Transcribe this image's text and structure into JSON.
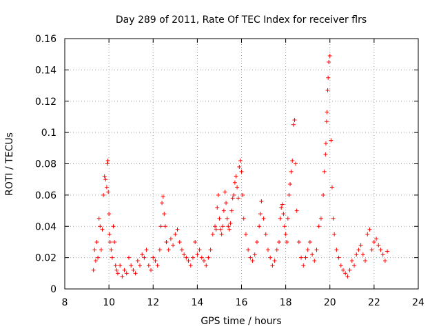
{
  "chart_data": {
    "type": "scatter",
    "title": "Day 289 of 2011, Rate Of TEC Index for receiver flrs",
    "xlabel": "GPS time / hours",
    "ylabel": "ROTI / TECUs",
    "xlim": [
      8,
      24
    ],
    "ylim": [
      0,
      0.16
    ],
    "xticks": [
      8,
      10,
      12,
      14,
      16,
      18,
      20,
      22,
      24
    ],
    "xtick_labels": [
      "8",
      "10",
      "12",
      "14",
      "16",
      "18",
      "20",
      "22",
      "24"
    ],
    "yticks": [
      0,
      0.02,
      0.04,
      0.06,
      0.08,
      0.1,
      0.12,
      0.14,
      0.16
    ],
    "ytick_labels": [
      "0",
      "0.02",
      "0.04",
      "0.06",
      "0.08",
      "0.1",
      "0.12",
      "0.14",
      "0.16"
    ],
    "grid": true,
    "marker": "plus",
    "color": "#ff0000",
    "series": [
      {
        "name": "ROTI",
        "x": [
          9.3,
          9.35,
          9.4,
          9.45,
          9.5,
          9.55,
          9.6,
          9.65,
          9.7,
          9.75,
          9.8,
          9.85,
          9.9,
          9.92,
          9.95,
          9.97,
          10.0,
          10.02,
          10.05,
          10.1,
          10.15,
          10.2,
          10.25,
          10.3,
          10.35,
          10.4,
          10.5,
          10.6,
          10.7,
          10.8,
          10.9,
          11.0,
          11.1,
          11.2,
          11.3,
          11.4,
          11.5,
          11.6,
          11.7,
          11.8,
          11.9,
          12.0,
          12.1,
          12.2,
          12.3,
          12.35,
          12.4,
          12.45,
          12.5,
          12.55,
          12.6,
          12.7,
          12.8,
          12.9,
          13.0,
          13.1,
          13.2,
          13.3,
          13.4,
          13.5,
          13.6,
          13.7,
          13.8,
          13.9,
          14.0,
          14.1,
          14.2,
          14.3,
          14.4,
          14.5,
          14.6,
          14.7,
          14.8,
          14.85,
          14.9,
          14.95,
          15.0,
          15.05,
          15.1,
          15.15,
          15.2,
          15.25,
          15.3,
          15.35,
          15.4,
          15.45,
          15.5,
          15.55,
          15.6,
          15.65,
          15.7,
          15.75,
          15.8,
          15.85,
          15.9,
          15.95,
          16.0,
          16.05,
          16.1,
          16.2,
          16.3,
          16.4,
          16.5,
          16.6,
          16.7,
          16.8,
          16.85,
          16.9,
          17.0,
          17.1,
          17.2,
          17.3,
          17.4,
          17.5,
          17.6,
          17.7,
          17.75,
          17.8,
          17.85,
          17.9,
          17.95,
          18.0,
          18.05,
          18.1,
          18.15,
          18.2,
          18.25,
          18.3,
          18.35,
          18.4,
          18.45,
          18.5,
          18.6,
          18.7,
          18.8,
          18.9,
          19.0,
          19.1,
          19.2,
          19.3,
          19.4,
          19.5,
          19.6,
          19.7,
          19.75,
          19.8,
          19.82,
          19.85,
          19.87,
          19.9,
          19.92,
          19.95,
          20.0,
          20.05,
          20.1,
          20.15,
          20.2,
          20.3,
          20.4,
          20.5,
          20.6,
          20.7,
          20.8,
          20.9,
          21.0,
          21.1,
          21.2,
          21.3,
          21.4,
          21.5,
          21.6,
          21.7,
          21.8,
          21.9,
          22.0,
          22.1,
          22.2,
          22.3,
          22.4,
          22.5,
          22.6
        ],
        "y": [
          0.012,
          0.025,
          0.018,
          0.03,
          0.02,
          0.045,
          0.04,
          0.025,
          0.038,
          0.06,
          0.072,
          0.07,
          0.065,
          0.08,
          0.082,
          0.062,
          0.048,
          0.035,
          0.03,
          0.025,
          0.02,
          0.04,
          0.03,
          0.015,
          0.012,
          0.01,
          0.015,
          0.008,
          0.012,
          0.01,
          0.02,
          0.015,
          0.012,
          0.01,
          0.018,
          0.015,
          0.022,
          0.02,
          0.025,
          0.015,
          0.012,
          0.02,
          0.018,
          0.015,
          0.025,
          0.04,
          0.055,
          0.059,
          0.048,
          0.04,
          0.03,
          0.025,
          0.032,
          0.028,
          0.035,
          0.038,
          0.03,
          0.025,
          0.022,
          0.02,
          0.018,
          0.015,
          0.02,
          0.03,
          0.022,
          0.025,
          0.02,
          0.018,
          0.015,
          0.02,
          0.025,
          0.035,
          0.04,
          0.038,
          0.052,
          0.06,
          0.045,
          0.038,
          0.035,
          0.04,
          0.05,
          0.062,
          0.055,
          0.045,
          0.04,
          0.038,
          0.042,
          0.05,
          0.058,
          0.06,
          0.068,
          0.072,
          0.065,
          0.058,
          0.078,
          0.082,
          0.075,
          0.06,
          0.045,
          0.035,
          0.025,
          0.02,
          0.018,
          0.022,
          0.03,
          0.04,
          0.048,
          0.056,
          0.045,
          0.035,
          0.025,
          0.02,
          0.015,
          0.018,
          0.025,
          0.03,
          0.045,
          0.052,
          0.054,
          0.048,
          0.04,
          0.035,
          0.03,
          0.045,
          0.06,
          0.067,
          0.075,
          0.082,
          0.105,
          0.108,
          0.08,
          0.05,
          0.03,
          0.02,
          0.015,
          0.02,
          0.025,
          0.03,
          0.022,
          0.018,
          0.025,
          0.04,
          0.045,
          0.06,
          0.075,
          0.086,
          0.093,
          0.107,
          0.113,
          0.127,
          0.135,
          0.145,
          0.149,
          0.095,
          0.065,
          0.045,
          0.035,
          0.025,
          0.02,
          0.015,
          0.012,
          0.01,
          0.008,
          0.012,
          0.018,
          0.015,
          0.022,
          0.025,
          0.028,
          0.022,
          0.018,
          0.035,
          0.038,
          0.025,
          0.03,
          0.032,
          0.028,
          0.025,
          0.022,
          0.018,
          0.024
        ]
      }
    ]
  }
}
